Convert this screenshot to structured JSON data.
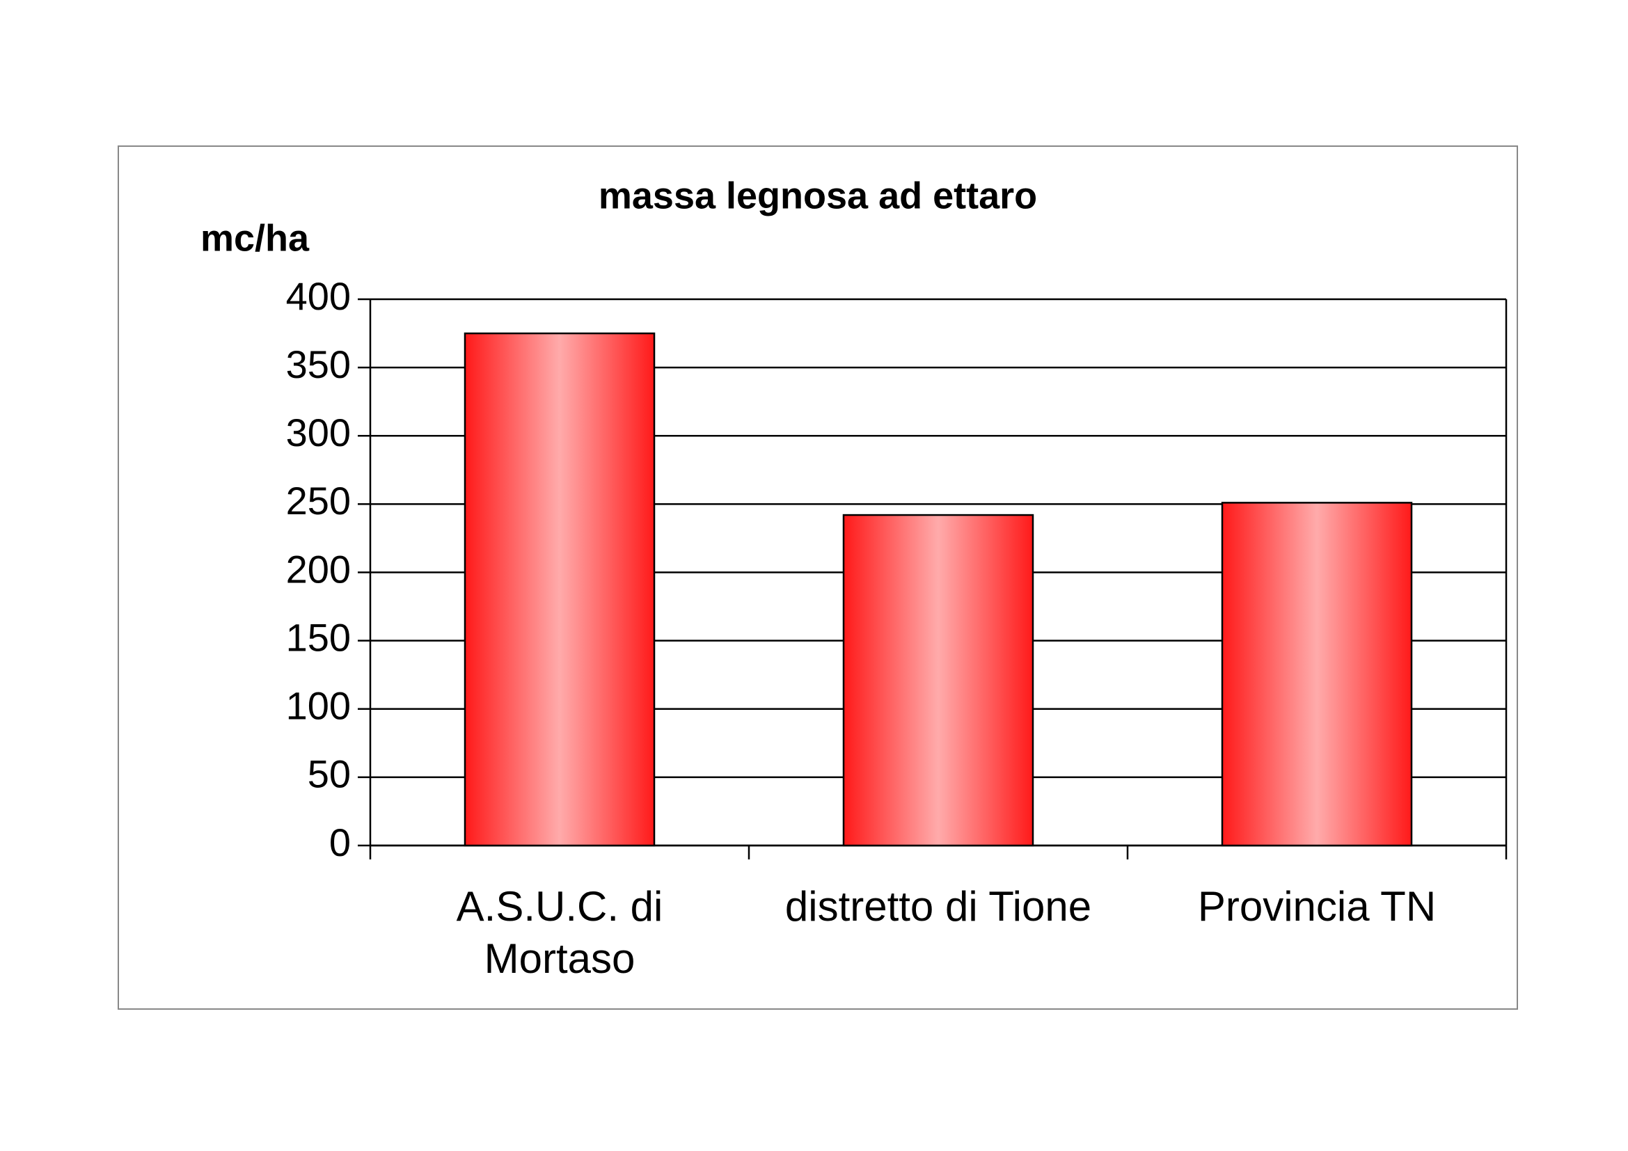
{
  "chart_data": {
    "type": "bar",
    "title": "massa legnosa ad ettaro",
    "y_label": "mc/ha",
    "categories": [
      "A.S.U.C. di Mortaso",
      "distretto di Tione",
      "Provincia TN"
    ],
    "values": [
      375,
      242,
      251
    ],
    "color": "#ff1a1a",
    "ylim": [
      0,
      400
    ],
    "yticks": [
      0,
      50,
      100,
      150,
      200,
      250,
      300,
      350,
      400
    ],
    "grid": true
  }
}
